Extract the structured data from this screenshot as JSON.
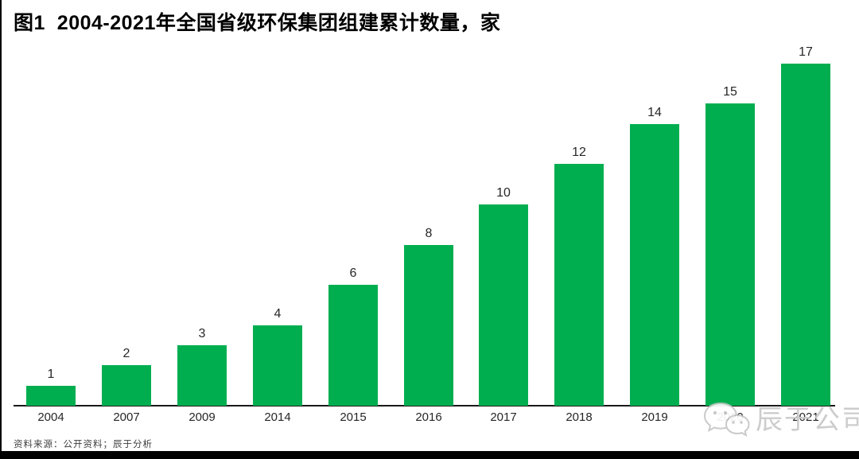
{
  "title": "图1  2004-2021年全国省级环保集团组建累计数量，家",
  "source_note": "资料来源：公开资料；辰于分析",
  "watermark": {
    "icon": "wechat-icon",
    "text": "辰于公司"
  },
  "colors": {
    "bar_green": "#00AE50",
    "axis_black": "#1a1a1a",
    "label_black": "#262626",
    "watermark_gray": "#c9c9c9",
    "frame_black": "#000000"
  },
  "chart_data": {
    "type": "bar",
    "title": "2004-2021年全国省级环保集团组建累计数量，家",
    "categories": [
      "2004",
      "2007",
      "2009",
      "2014",
      "2015",
      "2016",
      "2017",
      "2018",
      "2019",
      "2020",
      "2021"
    ],
    "values": [
      1,
      2,
      3,
      4,
      6,
      8,
      10,
      12,
      14,
      15,
      17
    ],
    "xlabel": "",
    "ylabel": "家",
    "ylim": [
      0,
      17
    ],
    "grid": false,
    "legend": false,
    "data_labels": true,
    "note": "y-axis not drawn; values shown as labels above bars; 2020 tick label hidden behind watermark"
  }
}
